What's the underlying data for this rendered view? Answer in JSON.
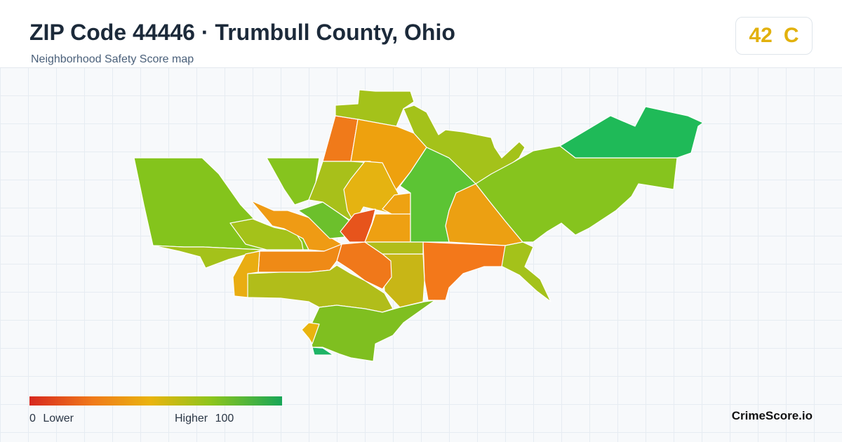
{
  "header": {
    "title": "ZIP Code 44446 · Trumbull County, Ohio",
    "subtitle": "Neighborhood Safety Score map"
  },
  "score": {
    "value": "42",
    "grade": "C",
    "color": "#e2b10c"
  },
  "legend": {
    "min_value": "0",
    "min_label": "Lower",
    "max_label": "Higher",
    "max_value": "100",
    "colors": [
      "#d7281e",
      "#f07a1a",
      "#e9b40e",
      "#8cc51c",
      "#18a657"
    ]
  },
  "brand": "CrimeScore.io",
  "map": {
    "regions": [
      {
        "name": "west-large",
        "color": "#84c41c"
      },
      {
        "name": "west-lower",
        "color": "#a4c21a"
      },
      {
        "name": "north-red",
        "color": "#f07a1a"
      },
      {
        "name": "north-top",
        "color": "#a4c21a"
      },
      {
        "name": "north-orange",
        "color": "#eea10e"
      },
      {
        "name": "central-yellow",
        "color": "#e5b311"
      },
      {
        "name": "central-red",
        "color": "#ea5a1c"
      },
      {
        "name": "central-green",
        "color": "#5cc434"
      },
      {
        "name": "east-orange",
        "color": "#eca012"
      },
      {
        "name": "east-large",
        "color": "#86c41e"
      },
      {
        "name": "northeast-green",
        "color": "#1fba58"
      },
      {
        "name": "south-orange",
        "color": "#f3781a"
      },
      {
        "name": "south-yellow",
        "color": "#c8b616"
      },
      {
        "name": "southwest",
        "color": "#b1bd1a"
      },
      {
        "name": "south-green",
        "color": "#7fbf20"
      },
      {
        "name": "south-tip",
        "color": "#1eb466"
      }
    ]
  }
}
